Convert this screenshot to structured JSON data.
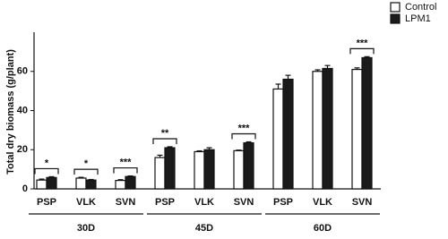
{
  "chart_data": {
    "type": "bar",
    "y_label": "Total dry biomass (g/plant)",
    "groups": [
      {
        "label": "30D",
        "categories": [
          "PSP",
          "VLK",
          "SVN"
        ]
      },
      {
        "label": "45D",
        "categories": [
          "PSP",
          "VLK",
          "SVN"
        ]
      },
      {
        "label": "60D",
        "categories": [
          "PSP",
          "VLK",
          "SVN"
        ]
      }
    ],
    "series": [
      {
        "name": "Control",
        "color": "#ffffff",
        "values": [
          4.5,
          5.5,
          4.3,
          16,
          19,
          19.5,
          51,
          60,
          61
        ],
        "errors": [
          0.5,
          0.4,
          0.4,
          1.2,
          0.4,
          0.3,
          2.5,
          0.8,
          0.8
        ]
      },
      {
        "name": "LPM1",
        "color": "#1a1a1a",
        "values": [
          5.8,
          4.5,
          6.3,
          21,
          20,
          23.5,
          56,
          61.5,
          67
        ],
        "errors": [
          0.4,
          0.3,
          0.3,
          0.5,
          1,
          0.5,
          2,
          1.5,
          0.5
        ]
      }
    ],
    "significance": [
      {
        "group": 0,
        "category": 0,
        "label": "*"
      },
      {
        "group": 0,
        "category": 1,
        "label": "*"
      },
      {
        "group": 0,
        "category": 2,
        "label": "***"
      },
      {
        "group": 1,
        "category": 0,
        "label": "**"
      },
      {
        "group": 1,
        "category": 2,
        "label": "***"
      },
      {
        "group": 2,
        "category": 2,
        "label": "***"
      }
    ],
    "ylim": [
      0,
      80
    ],
    "yticks": [
      0,
      20,
      40,
      60
    ],
    "legend": "top-right"
  }
}
